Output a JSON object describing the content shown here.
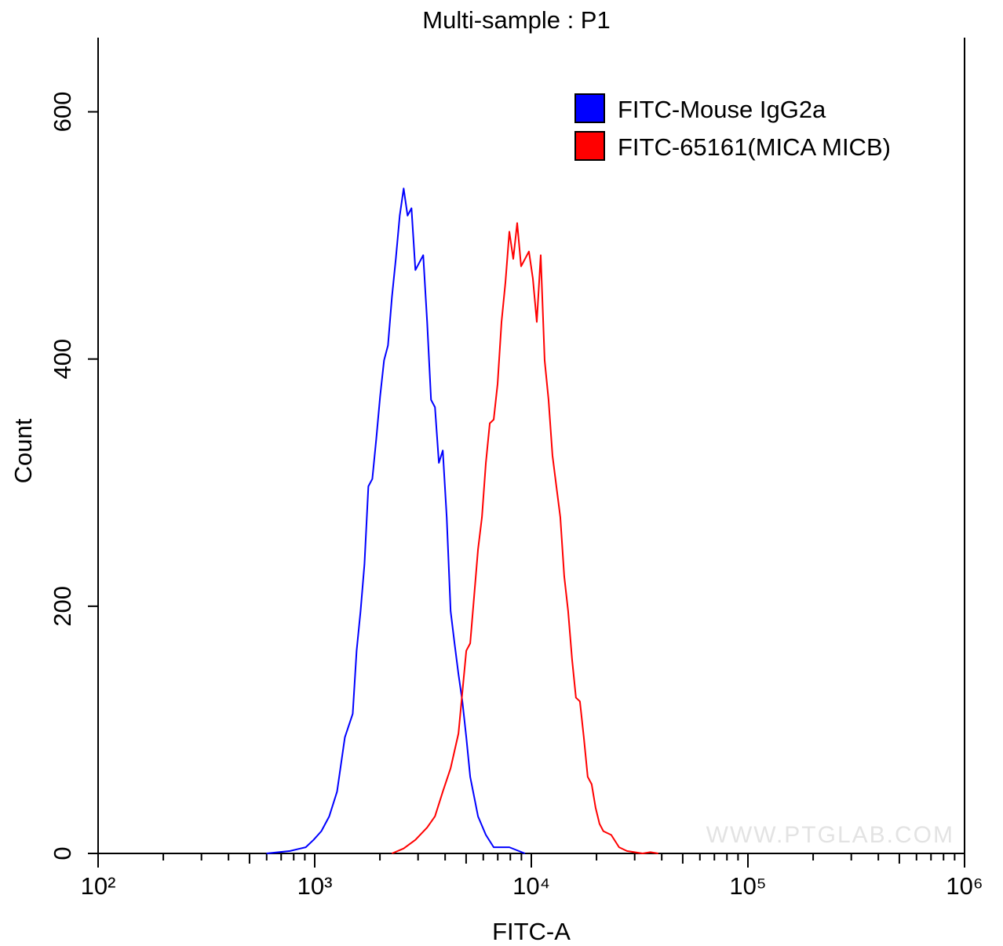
{
  "chart_data": {
    "type": "line",
    "title": "Multi-sample : P1",
    "xlabel": "FITC-A",
    "ylabel": "Count",
    "xscale": "log",
    "xlim": [
      100,
      1000000
    ],
    "xticks": [
      {
        "value": 100,
        "label": "10²"
      },
      {
        "value": 1000,
        "label": "10³"
      },
      {
        "value": 10000,
        "label": "10⁴"
      },
      {
        "value": 100000,
        "label": "10⁵"
      },
      {
        "value": 1000000,
        "label": "10⁶"
      }
    ],
    "ylim": [
      0,
      660
    ],
    "yticks": [
      0,
      200,
      400,
      600
    ],
    "legend": "upper right",
    "watermark": "WWW.PTGLAB.COM",
    "series": [
      {
        "name": "FITC-Mouse IgG2a",
        "color": "#0000ff",
        "x": [
          599,
          769,
          909,
          988,
          1073,
          1167,
          1268,
          1378,
          1498,
          1561,
          1628,
          1697,
          1769,
          1845,
          1923,
          2005,
          2090,
          2179,
          2272,
          2368,
          2469,
          2574,
          2683,
          2797,
          2916,
          3040,
          3169,
          3304,
          3444,
          3591,
          3743,
          3902,
          4068,
          4241,
          4421,
          4609,
          4805,
          5009,
          5222,
          5444,
          5675,
          6168,
          6703,
          7917,
          9351
        ],
        "values": [
          0,
          2,
          5,
          11,
          18,
          30,
          50,
          94,
          113,
          164,
          196,
          234,
          297,
          303,
          335,
          370,
          399,
          411,
          450,
          481,
          516,
          538,
          516,
          522,
          472,
          478,
          484,
          430,
          367,
          361,
          316,
          326,
          272,
          196,
          170,
          145,
          123,
          94,
          62,
          46,
          30,
          15,
          5,
          5,
          0
        ]
      },
      {
        "name": "FITC-65161(MICA MICB)",
        "color": "#ff0000",
        "x": [
          2272,
          2574,
          2916,
          3304,
          3591,
          3902,
          4241,
          4609,
          5009,
          5222,
          5444,
          5675,
          5916,
          6168,
          6430,
          6703,
          6988,
          7285,
          7594,
          7917,
          8253,
          8604,
          8970,
          9351,
          9748,
          10167,
          10600,
          11050,
          11520,
          12010,
          12520,
          13050,
          13610,
          14190,
          14790,
          15420,
          16070,
          16760,
          17470,
          18210,
          18990,
          19800,
          20640,
          21510,
          23380,
          25420,
          27620,
          32640,
          35450,
          38550
        ],
        "values": [
          0,
          4,
          11,
          21,
          30,
          50,
          69,
          97,
          164,
          170,
          208,
          246,
          272,
          316,
          348,
          351,
          380,
          430,
          462,
          503,
          481,
          510,
          475,
          481,
          487,
          465,
          430,
          484,
          399,
          367,
          322,
          297,
          272,
          224,
          196,
          157,
          126,
          123,
          94,
          62,
          56,
          37,
          24,
          18,
          15,
          5,
          2,
          0,
          1,
          0
        ]
      }
    ]
  }
}
